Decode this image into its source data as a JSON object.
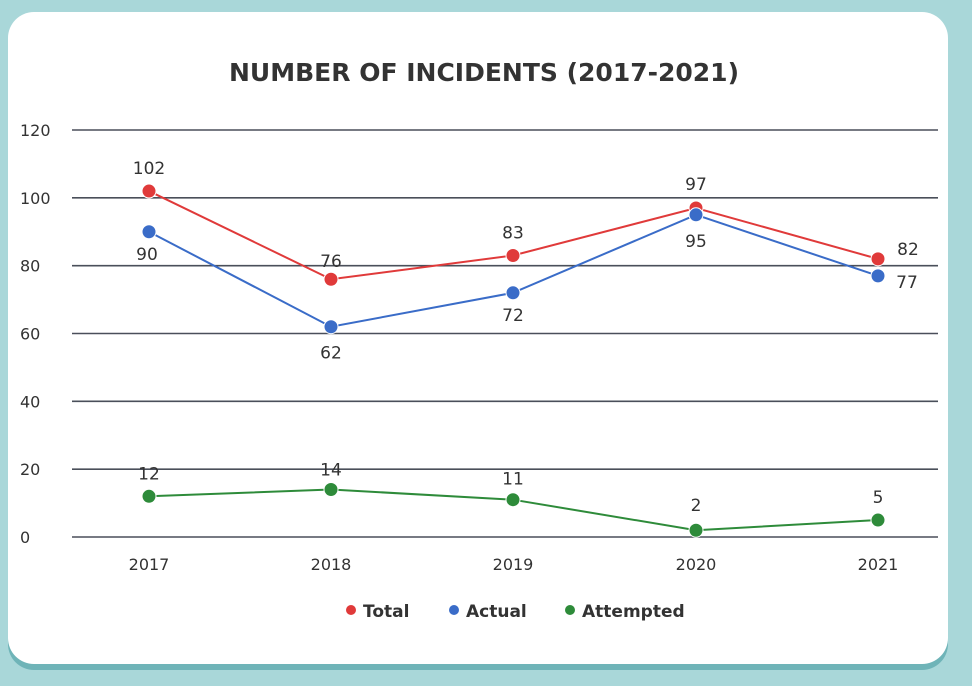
{
  "chart_data": {
    "type": "line",
    "title": "NUMBER OF INCIDENTS (2017-2021)",
    "categories": [
      "2017",
      "2018",
      "2019",
      "2020",
      "2021"
    ],
    "ylim": [
      0,
      120
    ],
    "yticks": [
      "0",
      "20",
      "40",
      "60",
      "80",
      "100",
      "120"
    ],
    "grid": true,
    "legend_position": "bottom",
    "series": [
      {
        "name": "Total",
        "color": "#e03a3a",
        "values": [
          102,
          76,
          83,
          97,
          82
        ],
        "labels": [
          "102",
          "76",
          "83",
          "97",
          "82"
        ]
      },
      {
        "name": "Actual",
        "color": "#3a6cc8",
        "values": [
          90,
          62,
          72,
          95,
          77
        ],
        "labels": [
          "90",
          "62",
          "72",
          "95",
          "77"
        ]
      },
      {
        "name": "Attempted",
        "color": "#2e8b3a",
        "values": [
          12,
          14,
          11,
          2,
          5
        ],
        "labels": [
          "12",
          "14",
          "11",
          "2",
          "5"
        ]
      }
    ]
  }
}
